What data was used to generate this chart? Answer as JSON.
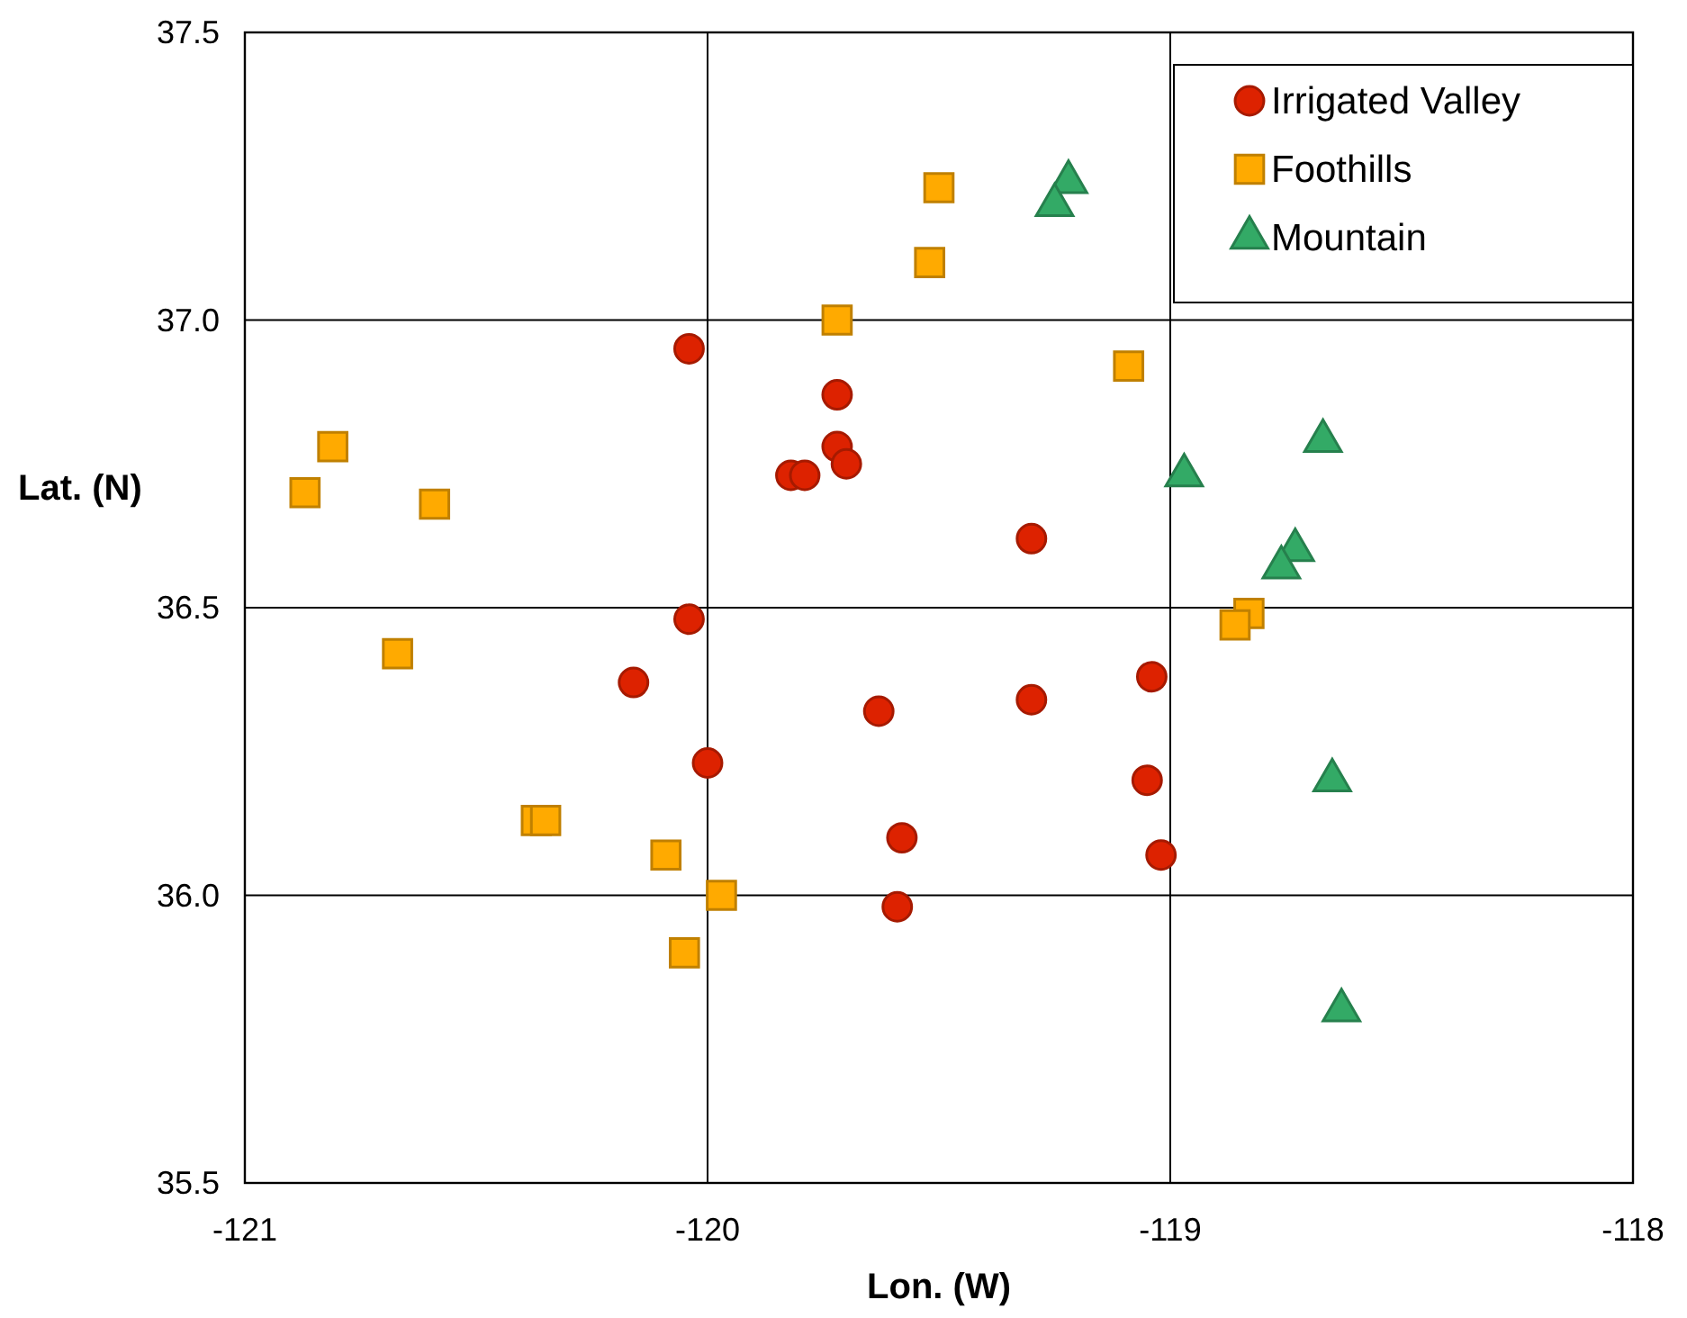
{
  "chart_data": {
    "type": "scatter",
    "xlabel": "Lon. (W)",
    "ylabel": "Lat. (N)",
    "xlim": [
      -121,
      -118
    ],
    "ylim": [
      35.5,
      37.5
    ],
    "xticks": [
      -121,
      -120,
      -119,
      -118
    ],
    "yticks": [
      {
        "value": 35.5,
        "label": "35.5"
      },
      {
        "value": 36,
        "label": "36.0"
      },
      {
        "value": 36.5,
        "label": "36.5"
      },
      {
        "value": 37,
        "label": "37.0"
      },
      {
        "value": 37.5,
        "label": "37.5"
      }
    ],
    "grid": true,
    "legend": "top right",
    "series": [
      {
        "name": "Irrigated Valley",
        "color": "#dd2200",
        "marker": "circle",
        "x": [
          -120.04,
          -119.72,
          -119.72,
          -119.82,
          -119.79,
          -119.7,
          -119.3,
          -120.04,
          -120.16,
          -120.0,
          -119.63,
          -119.3,
          -119.04,
          -119.05,
          -119.02,
          -119.58,
          -119.59
        ],
        "values": [
          36.95,
          36.87,
          36.78,
          36.73,
          36.73,
          36.75,
          36.62,
          36.48,
          36.37,
          36.23,
          36.32,
          36.34,
          36.38,
          36.2,
          36.07,
          36.1,
          35.98
        ]
      },
      {
        "name": "Foothills",
        "color": "#ffaa00",
        "marker": "square",
        "x": [
          -119.5,
          -119.52,
          -119.72,
          -119.09,
          -120.81,
          -120.87,
          -120.59,
          -120.67,
          -120.37,
          -120.35,
          -120.09,
          -119.97,
          -120.05,
          -118.83,
          -118.86
        ],
        "values": [
          37.23,
          37.1,
          37.0,
          36.92,
          36.78,
          36.7,
          36.68,
          36.42,
          36.13,
          36.13,
          36.07,
          36.0,
          35.9,
          36.49,
          36.47
        ]
      },
      {
        "name": "Mountain",
        "color": "#33aa66",
        "marker": "triangle",
        "x": [
          -119.22,
          -119.25,
          -118.67,
          -118.97,
          -118.73,
          -118.76,
          -118.65,
          -118.63
        ],
        "values": [
          37.24,
          37.2,
          36.79,
          36.73,
          36.6,
          36.57,
          36.2,
          35.8
        ]
      }
    ]
  }
}
